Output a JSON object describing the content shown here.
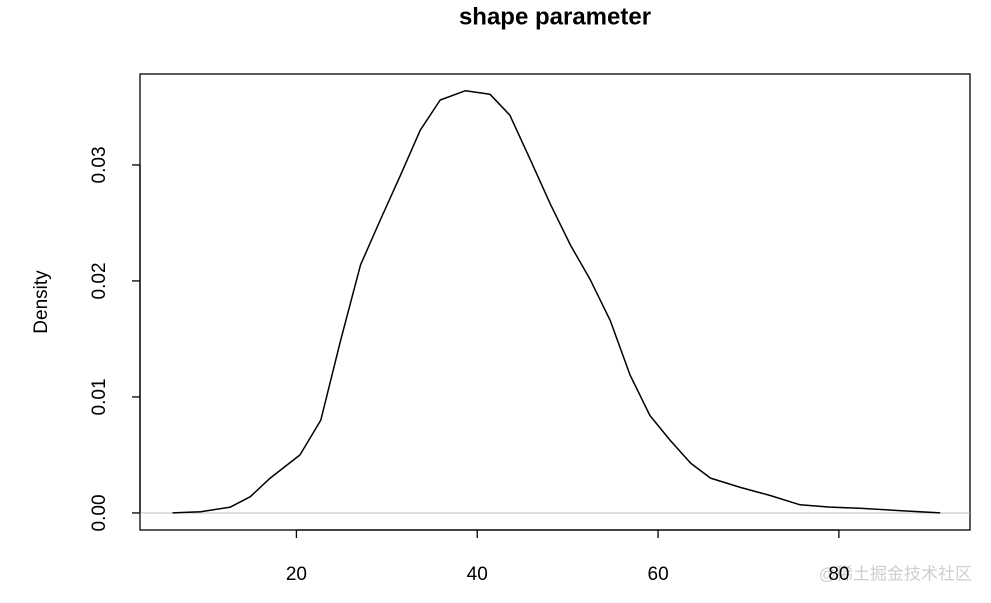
{
  "chart_data": {
    "type": "density",
    "title": "shape parameter",
    "y_label": "Density",
    "x": [
      6.3,
      9.4,
      12.7,
      14.9,
      17.1,
      20.4,
      22.7,
      24.9,
      27.1,
      29.3,
      31.5,
      33.7,
      35.9,
      38.7,
      41.4,
      43.6,
      45.9,
      48.1,
      50.3,
      52.5,
      54.7,
      56.9,
      59.1,
      61.3,
      63.6,
      65.8,
      69.1,
      72.4,
      75.7,
      79.0,
      82.3,
      86.7,
      91.2
    ],
    "values": [
      0,
      0.0001,
      0.0005,
      0.0014,
      0.003,
      0.005,
      0.008,
      0.0149,
      0.0214,
      0.0253,
      0.0291,
      0.033,
      0.0356,
      0.0364,
      0.0361,
      0.0343,
      0.0304,
      0.0266,
      0.0231,
      0.0201,
      0.0166,
      0.0119,
      0.0084,
      0.0063,
      0.0043,
      0.003,
      0.0022,
      0.0015,
      0.0007,
      0.0005,
      0.0004,
      0.0002,
      0
    ],
    "color": "#000000",
    "zero_line_color": "#bebebe",
    "xlim": [
      2.7,
      94.5
    ],
    "xticks": [
      20,
      40,
      60,
      80
    ],
    "ylim": [
      -0.00147,
      0.03784
    ],
    "yticks": [
      {
        "value": 0,
        "label": "0.00"
      },
      0.01,
      0.02,
      0.03
    ],
    "watermark": "@稀土掘金技术社区"
  }
}
